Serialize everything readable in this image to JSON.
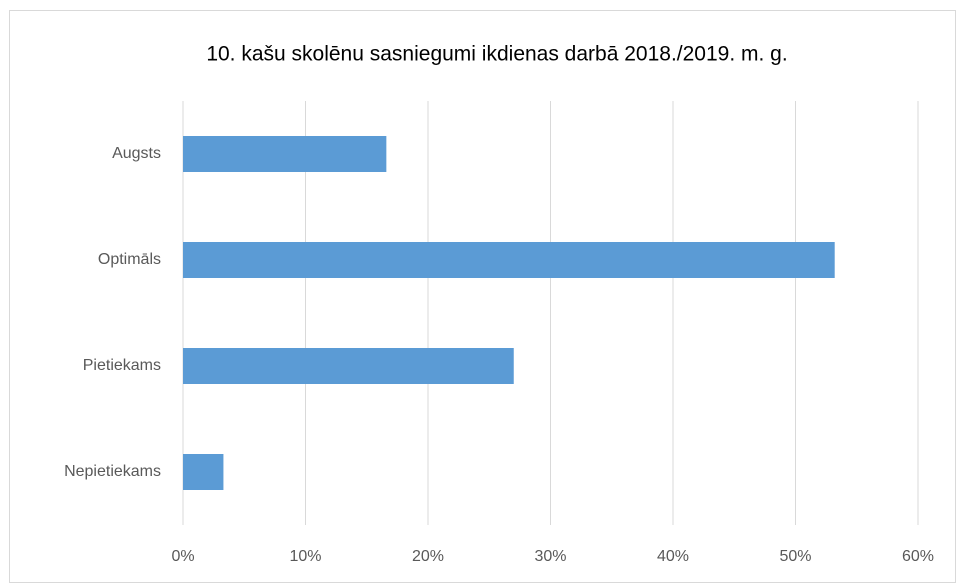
{
  "chart_data": {
    "type": "bar",
    "orientation": "horizontal",
    "title": "10. kašu skolēnu sasniegumi ikdienas darbā 2018./2019. m. g.",
    "categories": [
      "Augsts",
      "Optimāls",
      "Pietiekams",
      "Nepietiekams"
    ],
    "values": [
      16.6,
      53.2,
      27,
      3.3
    ],
    "color": "#5b9bd5",
    "xlim": [
      0,
      60
    ],
    "xticks": [
      {
        "value": 0,
        "label": "0%"
      },
      {
        "value": 10,
        "label": "10%"
      },
      {
        "value": 20,
        "label": "20%"
      },
      {
        "value": 30,
        "label": "30%"
      },
      {
        "value": 40,
        "label": "40%"
      },
      {
        "value": 50,
        "label": "50%"
      },
      {
        "value": 60,
        "label": "60%"
      }
    ],
    "grid": true
  }
}
